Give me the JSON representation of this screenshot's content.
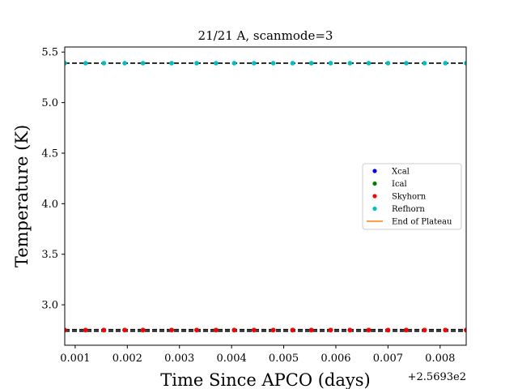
{
  "chart_data": {
    "type": "scatter",
    "title": "21/21 A, scanmode=3",
    "xlabel": "Time Since APCO (days)",
    "ylabel": "Temperature (K)",
    "x_offset_text": "+2.5693e2",
    "xlim": [
      0.0008,
      0.0085
    ],
    "ylim": [
      2.6,
      5.55
    ],
    "x_ticks": [
      0.001,
      0.002,
      0.003,
      0.004,
      0.005,
      0.006,
      0.007,
      0.008
    ],
    "x_tick_labels": [
      "0.001",
      "0.002",
      "0.003",
      "0.004",
      "0.005",
      "0.006",
      "0.007",
      "0.008"
    ],
    "y_ticks": [
      3.0,
      3.5,
      4.0,
      4.5,
      5.0,
      5.5
    ],
    "y_tick_labels": [
      "3.0",
      "3.5",
      "4.0",
      "4.5",
      "5.0",
      "5.5"
    ],
    "x": [
      0.0008,
      0.0012,
      0.00155,
      0.00195,
      0.0023,
      0.00285,
      0.00333,
      0.0037,
      0.00405,
      0.00443,
      0.0048,
      0.00517,
      0.00553,
      0.0059,
      0.00627,
      0.00663,
      0.007,
      0.00735,
      0.0077,
      0.0081,
      0.0085
    ],
    "series": [
      {
        "name": "Xcal",
        "color": "#0000ff",
        "marker": "dot",
        "values": [
          2.75,
          2.75,
          2.75,
          2.75,
          2.75,
          2.75,
          2.75,
          2.75,
          2.75,
          2.75,
          2.75,
          2.75,
          2.75,
          2.75,
          2.75,
          2.75,
          2.75,
          2.75,
          2.75,
          2.75,
          2.75
        ]
      },
      {
        "name": "Ical",
        "color": "#008000",
        "marker": "dot",
        "values": [
          2.75,
          2.75,
          2.75,
          2.75,
          2.75,
          2.75,
          2.75,
          2.75,
          2.75,
          2.75,
          2.75,
          2.75,
          2.75,
          2.75,
          2.75,
          2.75,
          2.75,
          2.75,
          2.75,
          2.75,
          2.75
        ]
      },
      {
        "name": "Skyhorn",
        "color": "#ff0000",
        "marker": "dot",
        "values": [
          2.75,
          2.75,
          2.75,
          2.75,
          2.75,
          2.75,
          2.75,
          2.75,
          2.75,
          2.75,
          2.75,
          2.75,
          2.75,
          2.75,
          2.75,
          2.75,
          2.75,
          2.75,
          2.75,
          2.75,
          2.75
        ]
      },
      {
        "name": "Refhorn",
        "color": "#00bfbf",
        "marker": "dot",
        "values": [
          5.39,
          5.39,
          5.39,
          5.39,
          5.39,
          5.39,
          5.39,
          5.39,
          5.39,
          5.39,
          5.39,
          5.39,
          5.39,
          5.39,
          5.39,
          5.39,
          5.39,
          5.39,
          5.39,
          5.39,
          5.39
        ]
      },
      {
        "name": "End of Plateau",
        "color": "#ff7f0e",
        "marker": "line",
        "values": []
      }
    ],
    "reference_lines": [
      2.755,
      5.39
    ],
    "grid": false,
    "legend_position": "center-right"
  }
}
